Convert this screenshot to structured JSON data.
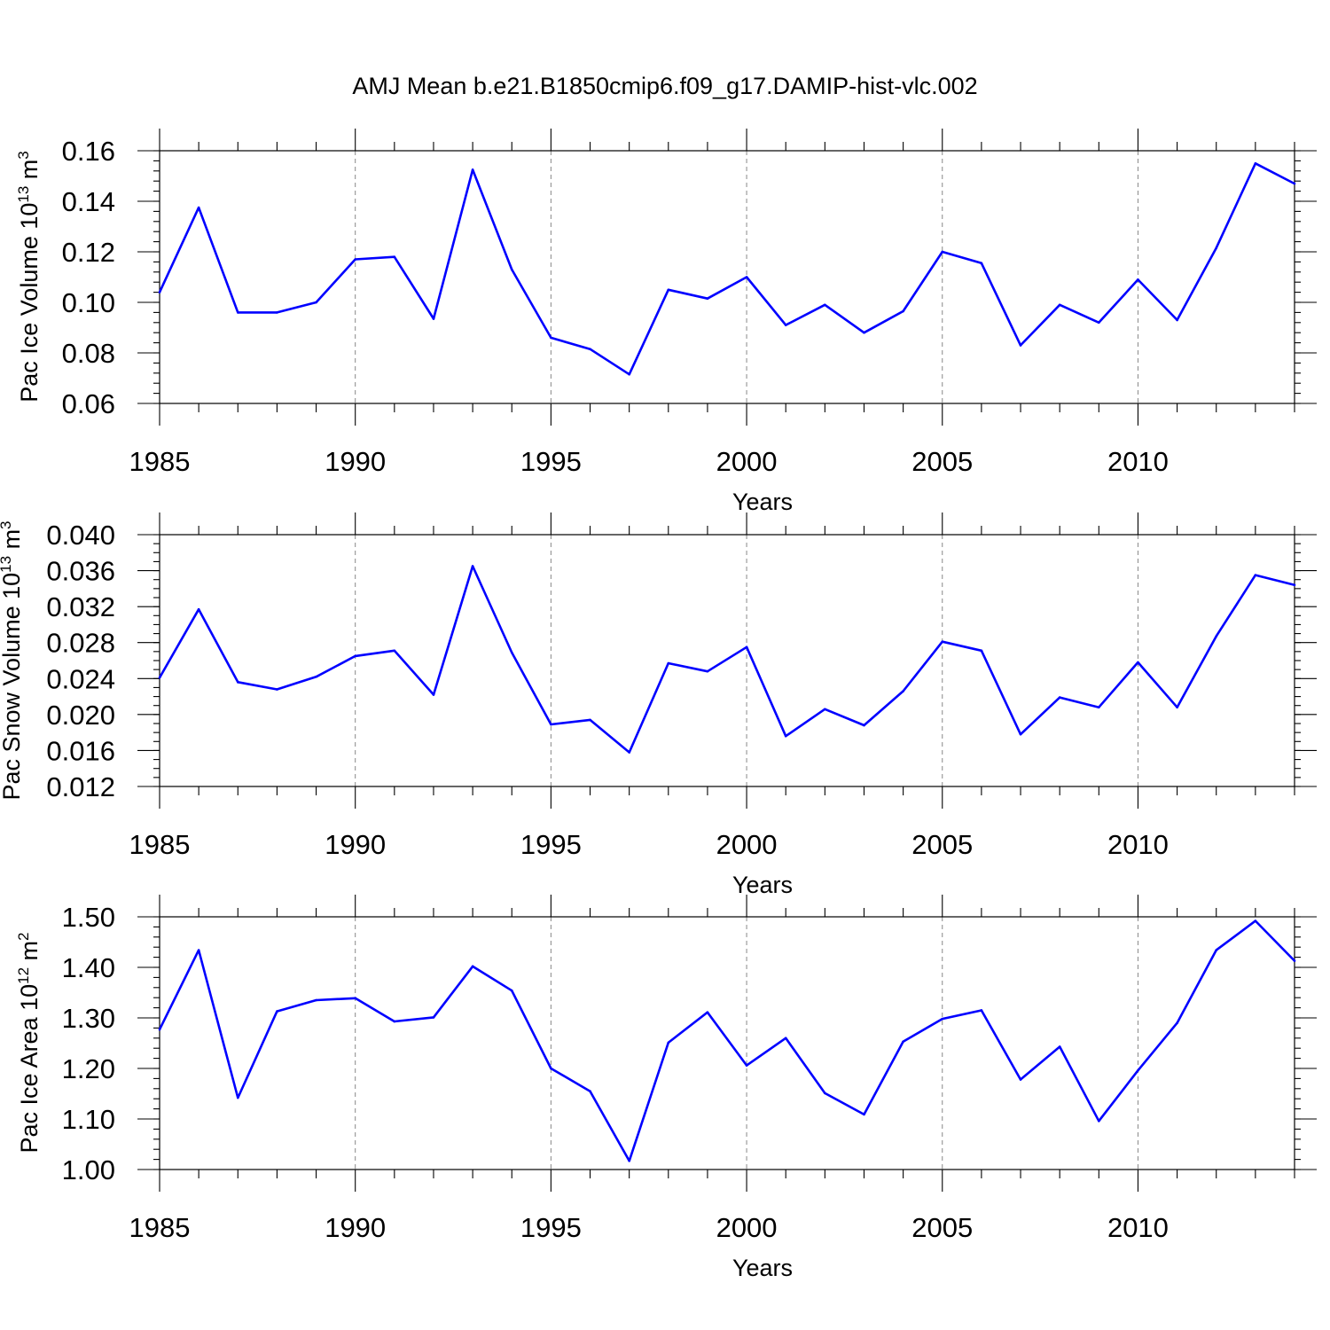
{
  "page_title": "AMJ Mean b.e21.B1850cmip6.f09_g17.DAMIP-hist-vlc.002",
  "chart_data": [
    {
      "type": "line",
      "title": "",
      "xlabel": "Years",
      "ylabel": "Pac Ice Volume 10",
      "ylabel_exp": "13",
      "ylabel_unit": " m",
      "ylabel_unit_exp": "3",
      "xlim": [
        1985,
        2014
      ],
      "ylim": [
        0.06,
        0.16
      ],
      "xticks": [
        1985,
        1990,
        1995,
        2000,
        2005,
        2010
      ],
      "xtick_labels": [
        "1985",
        "1990",
        "1995",
        "2000",
        "2005",
        "2010"
      ],
      "yticks": [
        0.06,
        0.08,
        0.1,
        0.12,
        0.14,
        0.16
      ],
      "ytick_labels": [
        "0.06",
        "0.08",
        "0.10",
        "0.12",
        "0.14",
        "0.16"
      ],
      "yminor_step": 0.004,
      "grid": "x-dashed",
      "series": [
        {
          "name": "Pac Ice Volume",
          "color": "#0000ff",
          "x": [
            1985,
            1986,
            1987,
            1988,
            1989,
            1990,
            1991,
            1992,
            1993,
            1994,
            1995,
            1996,
            1997,
            1998,
            1999,
            2000,
            2001,
            2002,
            2003,
            2004,
            2005,
            2006,
            2007,
            2008,
            2009,
            2010,
            2011,
            2012,
            2013,
            2014
          ],
          "values": [
            0.104,
            0.1375,
            0.096,
            0.096,
            0.1,
            0.117,
            0.118,
            0.0935,
            0.1525,
            0.113,
            0.086,
            0.0815,
            0.0715,
            0.105,
            0.1015,
            0.11,
            0.091,
            0.099,
            0.088,
            0.0965,
            0.12,
            0.1155,
            0.083,
            0.099,
            0.092,
            0.109,
            0.093,
            0.1215,
            0.155,
            0.147
          ]
        }
      ]
    },
    {
      "type": "line",
      "title": "",
      "xlabel": "Years",
      "ylabel": "Pac Snow Volume 10",
      "ylabel_exp": "13",
      "ylabel_unit": " m",
      "ylabel_unit_exp": "3",
      "xlim": [
        1985,
        2014
      ],
      "ylim": [
        0.012,
        0.04
      ],
      "xticks": [
        1985,
        1990,
        1995,
        2000,
        2005,
        2010
      ],
      "xtick_labels": [
        "1985",
        "1990",
        "1995",
        "2000",
        "2005",
        "2010"
      ],
      "yticks": [
        0.012,
        0.016,
        0.02,
        0.024,
        0.028,
        0.032,
        0.036,
        0.04
      ],
      "ytick_labels": [
        "0.012",
        "0.016",
        "0.020",
        "0.024",
        "0.028",
        "0.032",
        "0.036",
        "0.040"
      ],
      "yminor_step": 0.001,
      "grid": "x-dashed",
      "series": [
        {
          "name": "Pac Snow Volume",
          "color": "#0000ff",
          "x": [
            1985,
            1986,
            1987,
            1988,
            1989,
            1990,
            1991,
            1992,
            1993,
            1994,
            1995,
            1996,
            1997,
            1998,
            1999,
            2000,
            2001,
            2002,
            2003,
            2004,
            2005,
            2006,
            2007,
            2008,
            2009,
            2010,
            2011,
            2012,
            2013,
            2014
          ],
          "values": [
            0.0241,
            0.0317,
            0.0236,
            0.0228,
            0.0242,
            0.0265,
            0.0271,
            0.0222,
            0.0365,
            0.0269,
            0.0189,
            0.0194,
            0.0158,
            0.0257,
            0.0248,
            0.0275,
            0.0176,
            0.0206,
            0.0188,
            0.0226,
            0.0281,
            0.0271,
            0.0178,
            0.0219,
            0.0208,
            0.0258,
            0.0208,
            0.0287,
            0.0355,
            0.0344
          ]
        }
      ]
    },
    {
      "type": "line",
      "title": "",
      "xlabel": "Years",
      "ylabel": "Pac Ice Area 10",
      "ylabel_exp": "12",
      "ylabel_unit": " m",
      "ylabel_unit_exp": "2",
      "xlim": [
        1985,
        2014
      ],
      "ylim": [
        1.0,
        1.5
      ],
      "xticks": [
        1985,
        1990,
        1995,
        2000,
        2005,
        2010
      ],
      "xtick_labels": [
        "1985",
        "1990",
        "1995",
        "2000",
        "2005",
        "2010"
      ],
      "yticks": [
        1.0,
        1.1,
        1.2,
        1.3,
        1.4,
        1.5
      ],
      "ytick_labels": [
        "1.00",
        "1.10",
        "1.20",
        "1.30",
        "1.40",
        "1.50"
      ],
      "yminor_step": 0.02,
      "grid": "x-dashed",
      "series": [
        {
          "name": "Pac Ice Area",
          "color": "#0000ff",
          "x": [
            1985,
            1986,
            1987,
            1988,
            1989,
            1990,
            1991,
            1992,
            1993,
            1994,
            1995,
            1996,
            1997,
            1998,
            1999,
            2000,
            2001,
            2002,
            2003,
            2004,
            2005,
            2006,
            2007,
            2008,
            2009,
            2010,
            2011,
            2012,
            2013,
            2014
          ],
          "values": [
            1.277,
            1.434,
            1.142,
            1.313,
            1.335,
            1.339,
            1.293,
            1.301,
            1.402,
            1.354,
            1.2,
            1.155,
            1.017,
            1.251,
            1.311,
            1.206,
            1.26,
            1.151,
            1.109,
            1.253,
            1.298,
            1.315,
            1.178,
            1.243,
            1.096,
            1.196,
            1.29,
            1.434,
            1.492,
            1.413
          ]
        }
      ]
    }
  ]
}
